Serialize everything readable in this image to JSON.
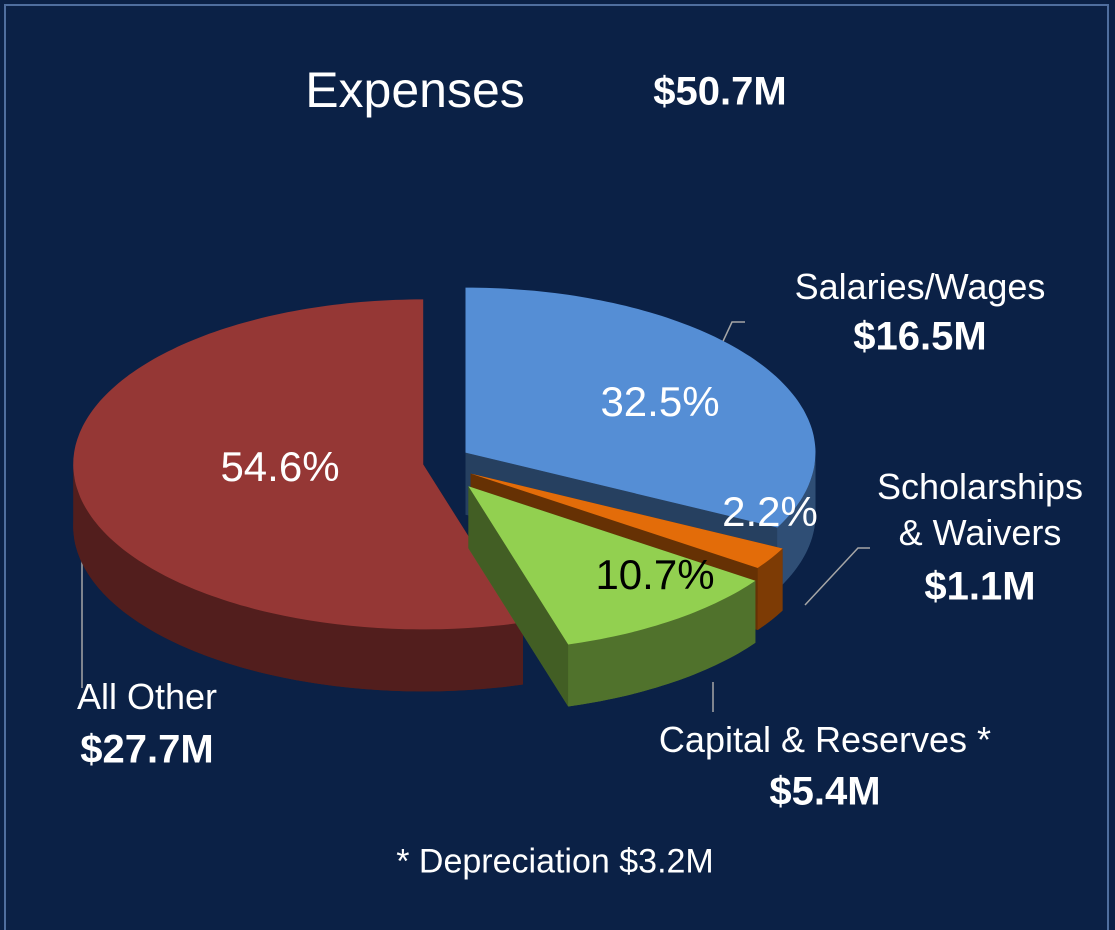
{
  "chart_data": {
    "type": "pie",
    "title": "Expenses",
    "total_label": "$50.7M",
    "categories": [
      "Salaries/Wages",
      "Scholarships & Waivers",
      "Capital & Reserves *",
      "All Other"
    ],
    "values": [
      32.5,
      2.2,
      10.7,
      54.6
    ],
    "value_labels": [
      "32.5%",
      "2.2%",
      "10.7%",
      "54.6%"
    ],
    "amount_labels": [
      "$16.5M",
      "$1.1M",
      "$5.4M",
      "$27.7M"
    ],
    "colors": [
      "#558ed5",
      "#e36c09",
      "#92d050",
      "#953735"
    ],
    "footnote": "* Depreciation  $3.2M"
  }
}
